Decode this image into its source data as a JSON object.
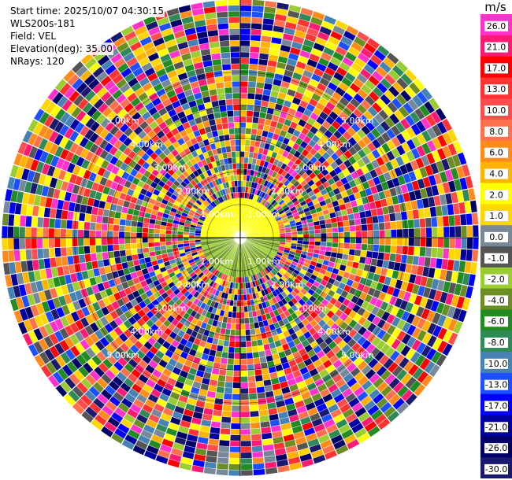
{
  "info": {
    "start_time": "Start time: 2025/10/07 04:30:15",
    "instrument": "WLS200s-181",
    "field": "Field: VEL",
    "elevation": "Elevation(deg): 35.00",
    "nrays": "NRays: 120"
  },
  "colorbar": {
    "unit": "m/s",
    "labels": [
      "26.0",
      "21.0",
      "17.0",
      "13.0",
      "10.0",
      "8.0",
      "6.0",
      "4.0",
      "2.0",
      "1.0",
      "0.0",
      "-1.0",
      "-2.0",
      "-4.0",
      "-6.0",
      "-8.0",
      "-10.0",
      "-13.0",
      "-17.0",
      "-21.0",
      "-26.0",
      "-30.0"
    ],
    "colors": [
      "#ff33cc",
      "#ff1a75",
      "#ff0000",
      "#ff3333",
      "#ff4d4d",
      "#ff704d",
      "#ff8c1a",
      "#ffb300",
      "#ffff00",
      "#ffd700",
      "#778899",
      "#555555",
      "#9acd32",
      "#6b8e23",
      "#228b22",
      "#2e8b57",
      "#4682b4",
      "#1e50ff",
      "#0000ff",
      "#0000a0",
      "#000066",
      "#191970"
    ]
  },
  "chart_data": {
    "type": "ppi",
    "field": "VEL",
    "unit": "m/s",
    "nrays": 120,
    "range_rings_km": [
      1.0,
      2.0,
      3.0,
      4.0,
      5.0
    ],
    "ring_labels": [
      "1.00km",
      "2.00km",
      "3.00km",
      "4.00km",
      "5.00km"
    ],
    "max_range_km": 7.2,
    "near_field_radius_km": 1.2,
    "near_field_colors": [
      "#ffff00",
      "#9acd32",
      "#6b8e23"
    ]
  }
}
